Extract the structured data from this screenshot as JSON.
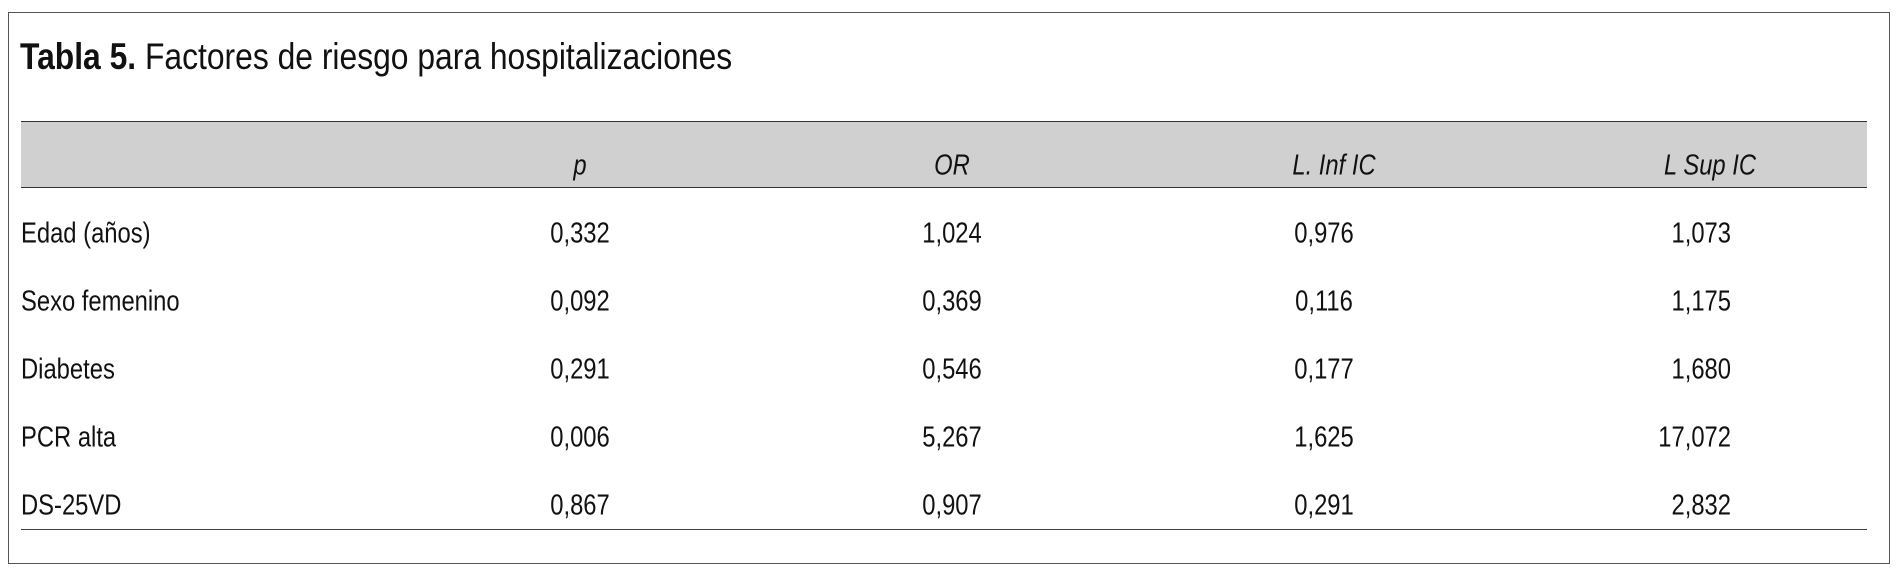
{
  "title": {
    "label": "Tabla 5.",
    "text": "Factores de riesgo para hospitalizaciones"
  },
  "table": {
    "headers": [
      "",
      "p",
      "OR",
      "L. Inf IC",
      "L Sup IC"
    ],
    "rows": [
      {
        "label": "Edad (años)",
        "p": "0,332",
        "or": "1,024",
        "inf": "0,976",
        "sup": "1,073"
      },
      {
        "label": "Sexo femenino",
        "p": "0,092",
        "or": "0,369",
        "inf": "0,116",
        "sup": "1,175"
      },
      {
        "label": "Diabetes",
        "p": "0,291",
        "or": "0,546",
        "inf": "0,177",
        "sup": "1,680"
      },
      {
        "label": "PCR alta",
        "p": "0,006",
        "or": "5,267",
        "inf": "1,625",
        "sup": "17,072"
      },
      {
        "label": "DS-25VD",
        "p": "0,867",
        "or": "0,907",
        "inf": "0,291",
        "sup": "2,832"
      }
    ]
  }
}
